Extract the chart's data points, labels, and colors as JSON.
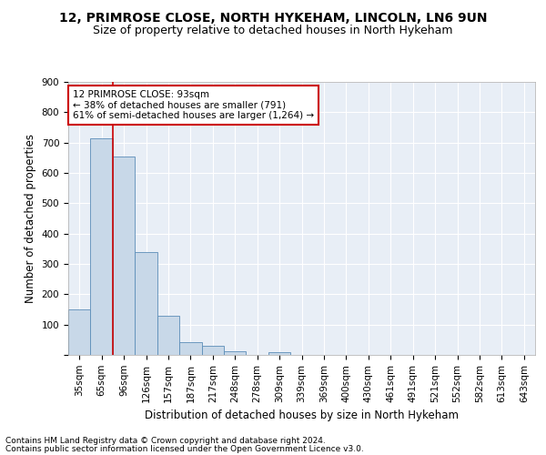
{
  "title1": "12, PRIMROSE CLOSE, NORTH HYKEHAM, LINCOLN, LN6 9UN",
  "title2": "Size of property relative to detached houses in North Hykeham",
  "xlabel": "Distribution of detached houses by size in North Hykeham",
  "ylabel": "Number of detached properties",
  "footnote1": "Contains HM Land Registry data © Crown copyright and database right 2024.",
  "footnote2": "Contains public sector information licensed under the Open Government Licence v3.0.",
  "bar_labels": [
    "35sqm",
    "65sqm",
    "96sqm",
    "126sqm",
    "157sqm",
    "187sqm",
    "217sqm",
    "248sqm",
    "278sqm",
    "309sqm",
    "339sqm",
    "369sqm",
    "400sqm",
    "430sqm",
    "461sqm",
    "491sqm",
    "521sqm",
    "552sqm",
    "582sqm",
    "613sqm",
    "643sqm"
  ],
  "bar_values": [
    150,
    715,
    655,
    340,
    130,
    42,
    30,
    12,
    0,
    8,
    0,
    0,
    0,
    0,
    0,
    0,
    0,
    0,
    0,
    0,
    0
  ],
  "bar_color": "#c8d8e8",
  "bar_edge_color": "#5b8db8",
  "vline_color": "#cc0000",
  "annotation_text": "12 PRIMROSE CLOSE: 93sqm\n← 38% of detached houses are smaller (791)\n61% of semi-detached houses are larger (1,264) →",
  "annotation_box_color": "#ffffff",
  "annotation_box_edge": "#cc0000",
  "ylim": [
    0,
    900
  ],
  "yticks": [
    0,
    100,
    200,
    300,
    400,
    500,
    600,
    700,
    800,
    900
  ],
  "bg_color": "#e8eef6",
  "grid_color": "#ffffff",
  "title1_fontsize": 10,
  "title2_fontsize": 9,
  "xlabel_fontsize": 8.5,
  "ylabel_fontsize": 8.5,
  "footnote_fontsize": 6.5,
  "tick_fontsize": 7.5,
  "annot_fontsize": 7.5
}
